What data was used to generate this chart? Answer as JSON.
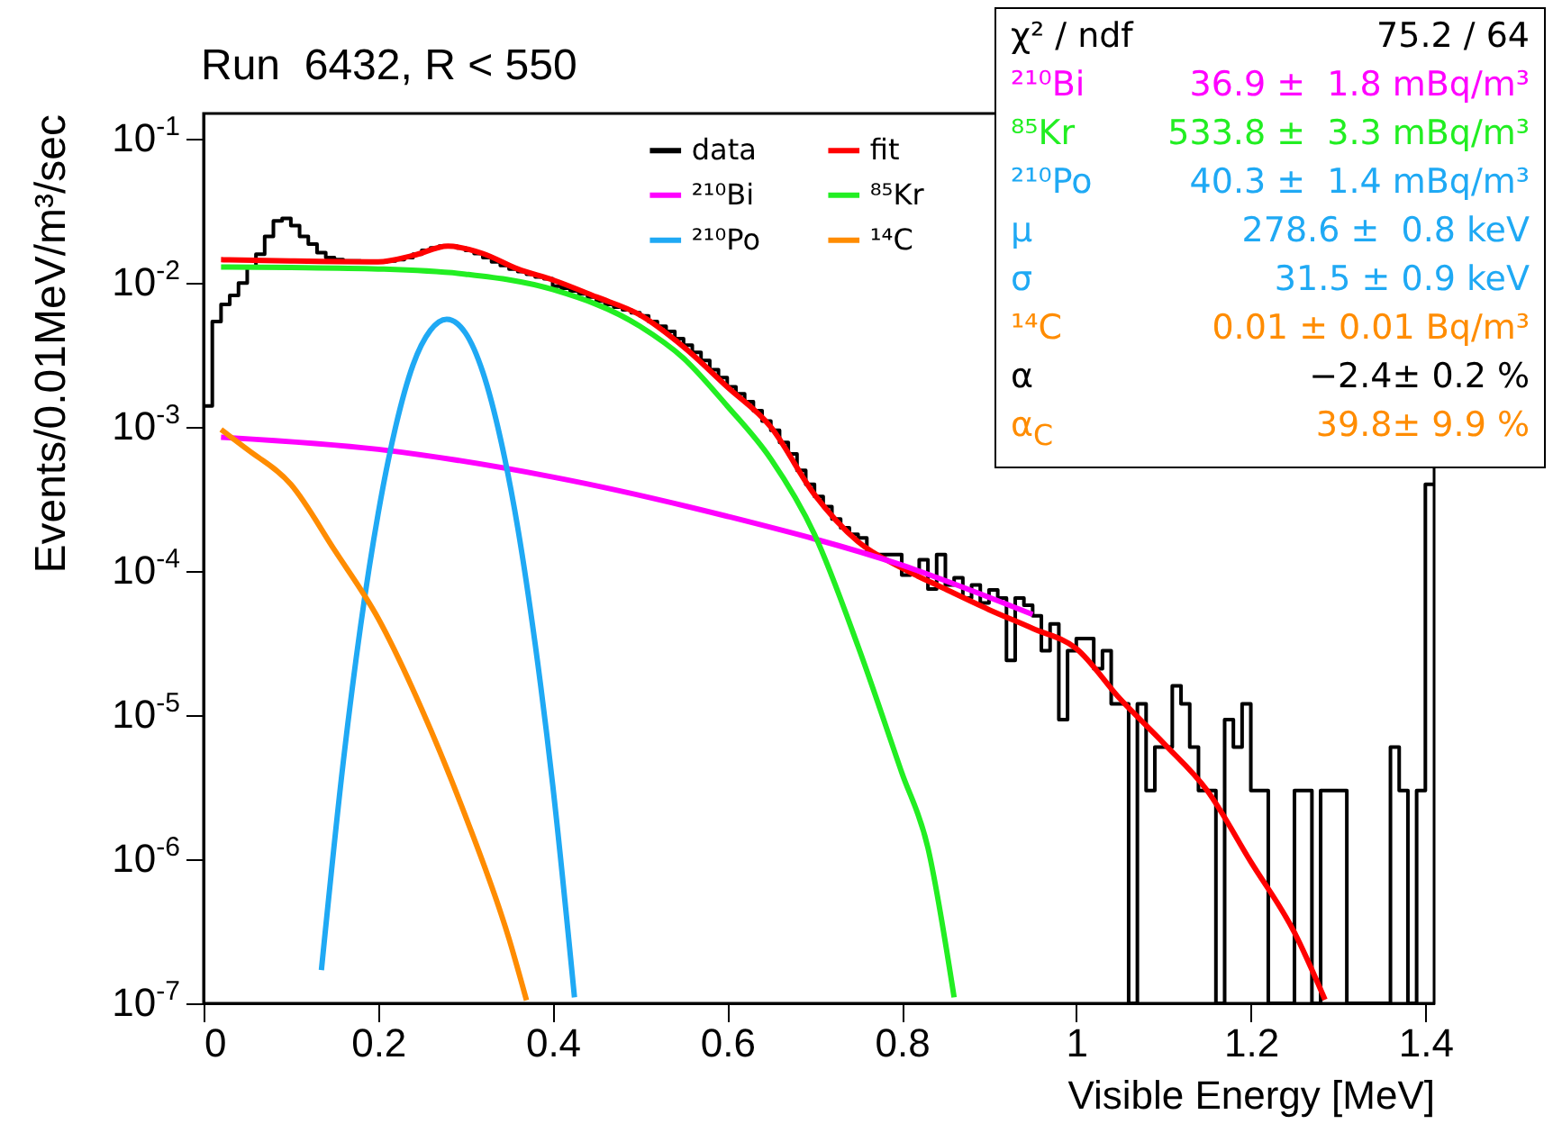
{
  "chart_data": {
    "type": "histogram",
    "title": "Run  6432, R < 550",
    "xlabel": "Visible Energy [MeV]",
    "ylabel": "Events/0.01MeV/m³/sec",
    "log": "y",
    "legend": "top",
    "grid": false,
    "xlim": [
      0,
      1.41
    ],
    "xticks": [
      0,
      0.2,
      0.4,
      0.6,
      0.8,
      1,
      1.2,
      1.4
    ],
    "ylim": [
      1e-07,
      0.15
    ],
    "yticks": [
      {
        "value": 1e-07,
        "label": "10$^{-7}$"
      },
      {
        "value": 1e-06,
        "label": "10$^{-6}$"
      },
      {
        "value": 1e-05,
        "label": "10$^{-5}$"
      },
      {
        "value": 0.0001,
        "label": "10$^{-4}$"
      },
      {
        "value": 0.001,
        "label": "10$^{-3}$"
      },
      {
        "value": 0.01,
        "label": "10$^{-2}$"
      },
      {
        "value": 0.1,
        "label": "10$^{-1}$"
      }
    ],
    "bins": [
      0,
      0.01,
      0.02,
      0.03,
      0.04,
      0.05,
      0.06,
      0.07,
      0.08,
      0.09,
      0.1,
      0.11,
      0.12,
      0.13,
      0.14,
      0.15,
      0.16,
      0.17,
      0.18,
      0.19,
      0.2,
      0.21,
      0.22,
      0.23,
      0.24,
      0.25,
      0.26,
      0.27,
      0.28,
      0.29,
      0.3,
      0.31,
      0.32,
      0.33,
      0.34,
      0.35,
      0.36,
      0.37,
      0.38,
      0.39,
      0.4,
      0.41,
      0.42,
      0.43,
      0.44,
      0.45,
      0.46,
      0.47,
      0.48,
      0.49,
      0.5,
      0.51,
      0.52,
      0.53,
      0.54,
      0.55,
      0.56,
      0.57,
      0.58,
      0.59,
      0.6,
      0.61,
      0.62,
      0.63,
      0.64,
      0.65,
      0.66,
      0.67,
      0.68,
      0.69,
      0.7,
      0.71,
      0.72,
      0.73,
      0.74,
      0.75,
      0.76,
      0.77,
      0.78,
      0.79,
      0.8,
      0.81,
      0.82,
      0.83,
      0.84,
      0.85,
      0.86,
      0.87,
      0.88,
      0.89,
      0.9,
      0.91,
      0.92,
      0.93,
      0.94,
      0.95,
      0.96,
      0.97,
      0.98,
      0.99,
      1,
      1.01,
      1.02,
      1.03,
      1.04,
      1.05,
      1.06,
      1.07,
      1.08,
      1.09,
      1.1,
      1.11,
      1.12,
      1.13,
      1.14,
      1.15,
      1.16,
      1.17,
      1.18,
      1.19,
      1.2,
      1.21,
      1.22,
      1.23,
      1.24,
      1.25,
      1.26,
      1.27,
      1.28,
      1.29,
      1.3,
      1.31,
      1.32,
      1.33,
      1.34,
      1.35,
      1.36,
      1.37,
      1.38,
      1.39,
      1.4,
      1.41
    ],
    "series": [
      {
        "name": "data",
        "type": "histogram",
        "color": "#000000",
        "values": [
          0.0014,
          0.0054,
          0.0071,
          0.0082,
          0.01,
          0.0129,
          0.0158,
          0.021,
          0.027,
          0.028,
          0.025,
          0.021,
          0.0186,
          0.0162,
          0.015,
          0.0145,
          0.0142,
          0.0142,
          0.014,
          0.014,
          0.014,
          0.0142,
          0.0145,
          0.015,
          0.0158,
          0.0168,
          0.0175,
          0.018,
          0.018,
          0.0175,
          0.0168,
          0.016,
          0.015,
          0.014,
          0.0132,
          0.0125,
          0.012,
          0.0115,
          0.011,
          0.0107,
          0.0095,
          0.0092,
          0.0088,
          0.0084,
          0.008,
          0.0075,
          0.0071,
          0.0068,
          0.0065,
          0.0062,
          0.0059,
          0.0054,
          0.005,
          0.0046,
          0.0041,
          0.0037,
          0.0033,
          0.0029,
          0.0025,
          0.0022,
          0.0019,
          0.0017,
          0.0015,
          0.0013,
          0.0011,
          0.00095,
          0.00078,
          0.00065,
          0.0005,
          0.0004,
          0.00033,
          0.00028,
          0.00023,
          0.0002,
          0.00018,
          0.00017,
          0.00013,
          0.00013,
          0.00013,
          0.00013,
          9.4e-05,
          0.0001,
          0.00012,
          7.5e-05,
          0.00013,
          8e-05,
          9e-05,
          6.5e-05,
          8e-05,
          6e-05,
          7.4e-05,
          6.5e-05,
          2.4e-05,
          6.5e-05,
          5.8e-05,
          4.9e-05,
          2.8e-05,
          4.3e-05,
          9.3e-06,
          2.8e-05,
          3.4e-05,
          3.4e-05,
          2.1e-05,
          2.8e-05,
          1.2e-05,
          1.2e-05,
          null,
          1.2e-05,
          3e-06,
          6e-06,
          6e-06,
          1.6e-05,
          1.2e-05,
          6e-06,
          3e-06,
          3e-06,
          null,
          9.3e-06,
          6e-06,
          1.2e-05,
          3e-06,
          3e-06,
          null,
          null,
          null,
          3e-06,
          3e-06,
          null,
          3e-06,
          3e-06,
          3e-06,
          null,
          null,
          null,
          null,
          null,
          6e-06,
          3e-06,
          null,
          3e-06,
          0.0004
        ]
      },
      {
        "name": "fit",
        "type": "line",
        "color": "#ff0000",
        "x": [
          0.02,
          0.1,
          0.2,
          0.24,
          0.28,
          0.32,
          0.36,
          0.4,
          0.45,
          0.5,
          0.55,
          0.6,
          0.65,
          0.7,
          0.75,
          0.8,
          0.85,
          0.9,
          0.95,
          1,
          1.05,
          1.1,
          1.15,
          1.2,
          1.25,
          1.285
        ],
        "values": [
          0.0145,
          0.0142,
          0.014,
          0.0155,
          0.018,
          0.016,
          0.0125,
          0.0105,
          0.008,
          0.006,
          0.0036,
          0.0019,
          0.001,
          0.00034,
          0.00016,
          0.000105,
          7.5e-05,
          5.4e-05,
          4e-05,
          2.9e-05,
          1.3e-05,
          6.4e-06,
          3e-06,
          9.6e-07,
          3.1e-07,
          1.06e-07
        ]
      },
      {
        "name": "²¹⁰Bi",
        "type": "line",
        "color": "#ff00ff",
        "x": [
          0.02,
          0.2,
          0.4,
          0.6,
          0.8,
          0.95
        ],
        "values": [
          0.00085,
          0.0007,
          0.00045,
          0.00024,
          0.00011,
          5e-05
        ]
      },
      {
        "name": "⁸⁵Kr",
        "type": "line",
        "color": "#22ee22",
        "x": [
          0.02,
          0.1,
          0.2,
          0.3,
          0.4,
          0.5,
          0.55,
          0.6,
          0.65,
          0.7,
          0.75,
          0.8,
          0.83,
          0.86
        ],
        "values": [
          0.0129,
          0.0128,
          0.0125,
          0.0115,
          0.009,
          0.005,
          0.003,
          0.0014,
          0.0006,
          0.00018,
          3e-05,
          4e-06,
          1.2e-06,
          1.1e-07
        ]
      },
      {
        "name": "²¹⁰Po",
        "type": "line",
        "color": "#1fa9f4",
        "x": [
          0.135,
          0.16,
          0.18,
          0.2,
          0.22,
          0.24,
          0.26,
          0.2786,
          0.3,
          0.32,
          0.34,
          0.36,
          0.38,
          0.4,
          0.425
        ],
        "values": [
          1.7e-07,
          4.7e-06,
          4.2e-05,
          0.00025,
          0.001,
          0.0027,
          0.0047,
          0.0056,
          0.0045,
          0.0024,
          0.00084,
          0.0002,
          3.1e-05,
          3.3e-06,
          1.1e-07
        ]
      },
      {
        "name": "¹⁴C",
        "type": "line",
        "color": "#ff8c00",
        "x": [
          0.02,
          0.05,
          0.1,
          0.15,
          0.2,
          0.25,
          0.3,
          0.35,
          0.37
        ],
        "values": [
          0.00096,
          0.0007,
          0.0004,
          0.00014,
          4.7e-05,
          1.1e-05,
          2e-06,
          2.8e-07,
          1.05e-07
        ]
      }
    ],
    "annotations": [
      "χ² / ndf",
      "75.2 / 64",
      "²¹⁰Bi",
      "36.9 ±  1.8 mBq/m³",
      "⁸⁵Kr",
      "533.8 ±  3.3 mBq/m³",
      "²¹⁰Po",
      "40.3 ±  1.4 mBq/m³",
      "μ",
      "278.6 ±  0.8 keV",
      "σ",
      "31.5 ± 0.9 keV",
      "¹⁴C",
      "0.01 ± 0.01 Bq/m³",
      "α",
      "−2.4± 0.2 %",
      "α$_{C}$",
      "39.8± 9.9 %"
    ]
  }
}
